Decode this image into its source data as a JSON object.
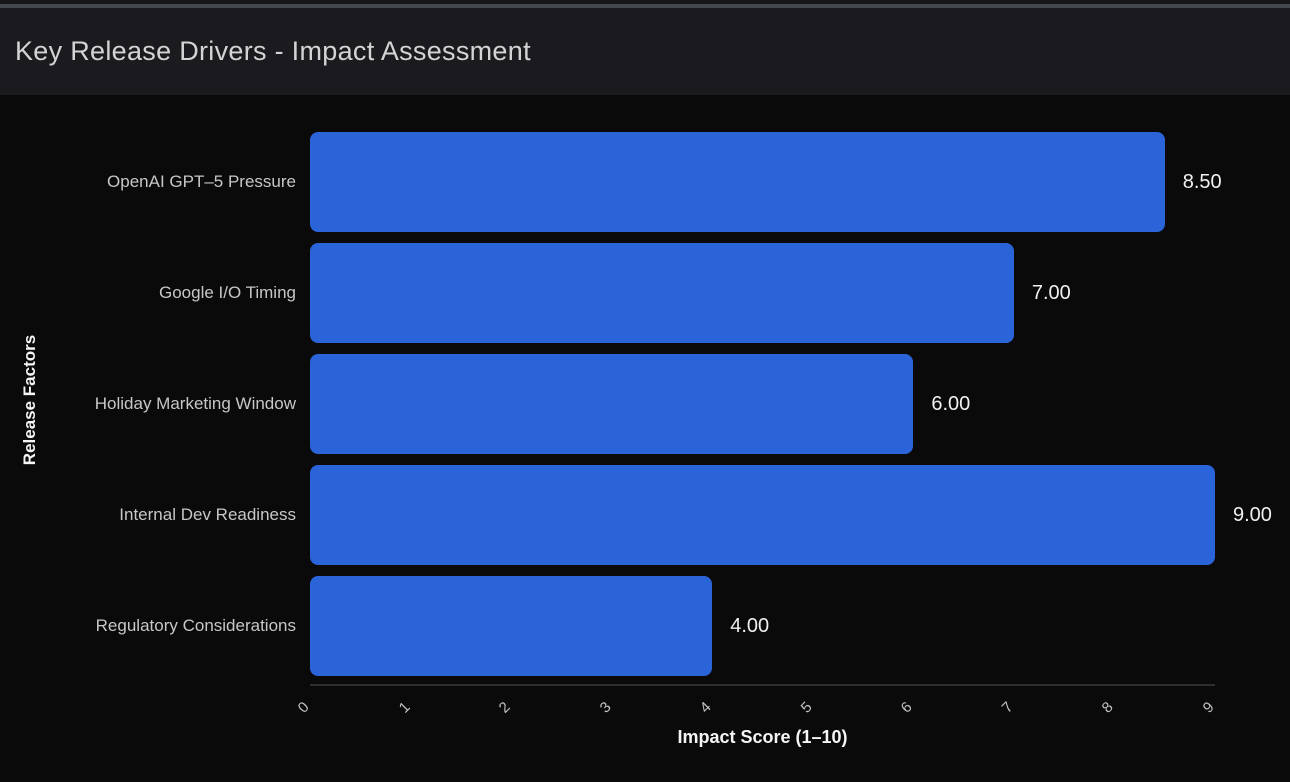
{
  "header": {
    "title": "Key Release Drivers - Impact Assessment"
  },
  "chart_data": {
    "type": "bar",
    "orientation": "horizontal",
    "title": "Key Release Drivers - Impact Assessment",
    "categories": [
      "OpenAI GPT–5 Pressure",
      "Google I/O Timing",
      "Holiday Marketing Window",
      "Internal Dev Readiness",
      "Regulatory Considerations"
    ],
    "values": [
      8.5,
      7.0,
      6.0,
      9.0,
      4.0
    ],
    "value_labels": [
      "8.50",
      "7.00",
      "6.00",
      "9.00",
      "4.00"
    ],
    "xlabel": "Impact Score (1–10)",
    "ylabel": "Release Factors",
    "xlim": [
      0,
      9
    ],
    "xticks": [
      0,
      1,
      2,
      3,
      4,
      5,
      6,
      7,
      8,
      9
    ],
    "xtick_labels": [
      "0",
      "1",
      "2",
      "3",
      "4",
      "5",
      "6",
      "7",
      "8",
      "9"
    ],
    "grid": false,
    "legend": false,
    "bar_color": "#2b63d8",
    "background_color": "#0a0a0a",
    "header_color": "#1b1b1f",
    "text_color": "#c7c7c9",
    "value_text_color": "#f0f0f0",
    "axis_line_color": "#2e2e2e"
  }
}
